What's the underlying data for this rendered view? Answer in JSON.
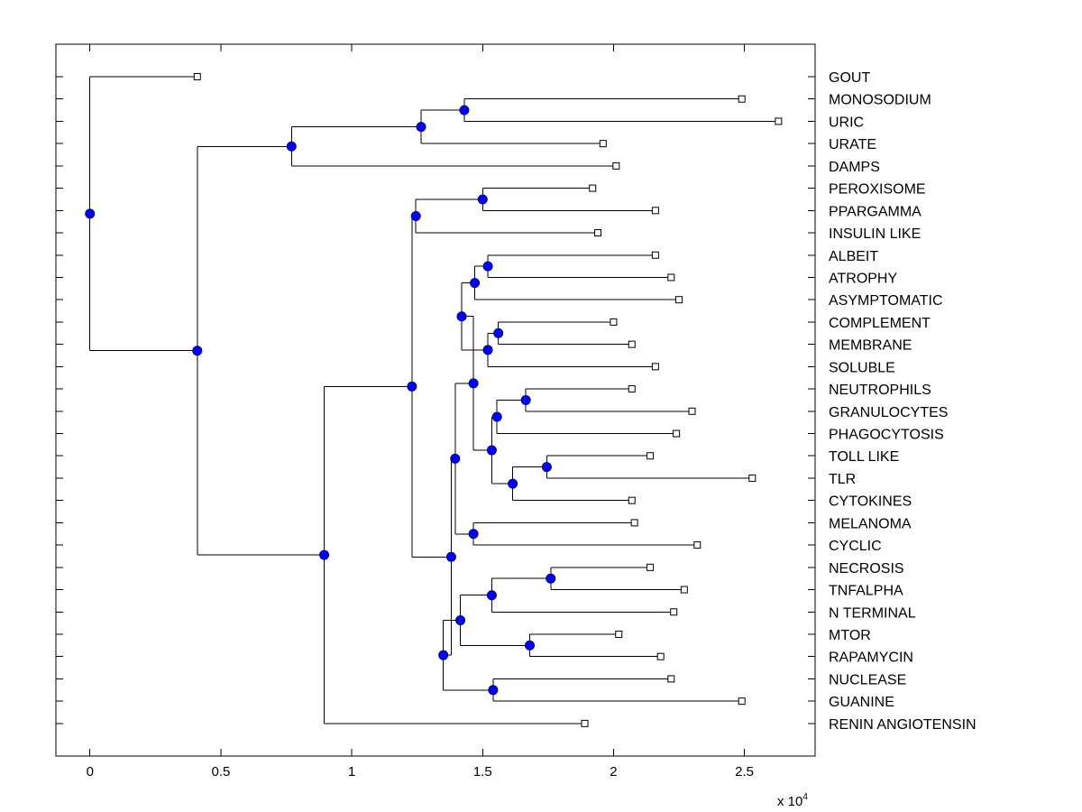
{
  "chart_data": {
    "type": "dendrogram",
    "orientation": "horizontal",
    "title": "",
    "xlabel": "",
    "ylabel": "",
    "x_multiplier_label": "x 10",
    "x_multiplier_exponent": "4",
    "xlim": [
      -0.13,
      2.77
    ],
    "xticks": [
      0,
      0.5,
      1,
      1.5,
      2,
      2.5
    ],
    "xtick_labels": [
      "0",
      "0.5",
      "1",
      "1.5",
      "2",
      "2.5"
    ],
    "grid": false,
    "leaves": [
      {
        "label": "GOUT",
        "x": 0.41
      },
      {
        "label": "MONOSODIUM",
        "x": 2.49
      },
      {
        "label": "URIC",
        "x": 2.63
      },
      {
        "label": "URATE",
        "x": 1.96
      },
      {
        "label": "DAMPS",
        "x": 2.01
      },
      {
        "label": "PEROXISOME",
        "x": 1.92
      },
      {
        "label": "PPARGAMMA",
        "x": 2.16
      },
      {
        "label": "INSULIN LIKE",
        "x": 1.94
      },
      {
        "label": "ALBEIT",
        "x": 2.16
      },
      {
        "label": "ATROPHY",
        "x": 2.22
      },
      {
        "label": "ASYMPTOMATIC",
        "x": 2.25
      },
      {
        "label": "COMPLEMENT",
        "x": 2.0
      },
      {
        "label": "MEMBRANE",
        "x": 2.07
      },
      {
        "label": "SOLUBLE",
        "x": 2.16
      },
      {
        "label": "NEUTROPHILS",
        "x": 2.07
      },
      {
        "label": "GRANULOCYTES",
        "x": 2.3
      },
      {
        "label": "PHAGOCYTOSIS",
        "x": 2.24
      },
      {
        "label": "TOLL LIKE",
        "x": 2.14
      },
      {
        "label": "TLR",
        "x": 2.53
      },
      {
        "label": "CYTOKINES",
        "x": 2.07
      },
      {
        "label": "MELANOMA",
        "x": 2.08
      },
      {
        "label": "CYCLIC",
        "x": 2.32
      },
      {
        "label": "NECROSIS",
        "x": 2.14
      },
      {
        "label": "TNFALPHA",
        "x": 2.27
      },
      {
        "label": "N TERMINAL",
        "x": 2.23
      },
      {
        "label": "MTOR",
        "x": 2.02
      },
      {
        "label": "RAPAMYCIN",
        "x": 2.18
      },
      {
        "label": "NUCLEASE",
        "x": 2.22
      },
      {
        "label": "GUANINE",
        "x": 2.49
      },
      {
        "label": "RENIN ANGIOTENSIN",
        "x": 1.89
      }
    ],
    "merges": [
      {
        "id": "n1",
        "x": 1.43,
        "children": [
          "L1",
          "L2"
        ]
      },
      {
        "id": "n2",
        "x": 1.265,
        "children": [
          "n1",
          "L3"
        ]
      },
      {
        "id": "n3",
        "x": 0.77,
        "children": [
          "n2",
          "L4"
        ]
      },
      {
        "id": "n4",
        "x": 1.5,
        "children": [
          "L5",
          "L6"
        ]
      },
      {
        "id": "n5",
        "x": 1.245,
        "children": [
          "n4",
          "L7"
        ]
      },
      {
        "id": "n6",
        "x": 1.52,
        "children": [
          "L8",
          "L9"
        ]
      },
      {
        "id": "n7",
        "x": 1.47,
        "children": [
          "n6",
          "L10"
        ]
      },
      {
        "id": "n8",
        "x": 1.56,
        "children": [
          "L11",
          "L12"
        ]
      },
      {
        "id": "n9",
        "x": 1.52,
        "children": [
          "n8",
          "L13"
        ]
      },
      {
        "id": "n10",
        "x": 1.42,
        "children": [
          "n7",
          "n9"
        ]
      },
      {
        "id": "n11",
        "x": 1.665,
        "children": [
          "L14",
          "L15"
        ]
      },
      {
        "id": "n12",
        "x": 1.555,
        "children": [
          "n11",
          "L16"
        ]
      },
      {
        "id": "n13",
        "x": 1.745,
        "children": [
          "L17",
          "L18"
        ]
      },
      {
        "id": "n14",
        "x": 1.615,
        "children": [
          "n13",
          "L19"
        ]
      },
      {
        "id": "n15",
        "x": 1.535,
        "children": [
          "n12",
          "n14"
        ]
      },
      {
        "id": "n16",
        "x": 1.465,
        "children": [
          "n10",
          "n15"
        ]
      },
      {
        "id": "n17",
        "x": 1.465,
        "children": [
          "L20",
          "L21"
        ]
      },
      {
        "id": "n18",
        "x": 1.395,
        "children": [
          "n16",
          "n17"
        ]
      },
      {
        "id": "n19",
        "x": 1.76,
        "children": [
          "L22",
          "L23"
        ]
      },
      {
        "id": "n20",
        "x": 1.535,
        "children": [
          "n19",
          "L24"
        ]
      },
      {
        "id": "n21",
        "x": 1.68,
        "children": [
          "L25",
          "L26"
        ]
      },
      {
        "id": "n22",
        "x": 1.415,
        "children": [
          "n20",
          "n21"
        ]
      },
      {
        "id": "n23",
        "x": 1.54,
        "children": [
          "L27",
          "L28"
        ]
      },
      {
        "id": "n24",
        "x": 1.35,
        "children": [
          "n22",
          "n23"
        ]
      },
      {
        "id": "n25",
        "x": 1.38,
        "children": [
          "n18",
          "n24"
        ]
      },
      {
        "id": "n26",
        "x": 1.23,
        "children": [
          "n5",
          "n25"
        ]
      },
      {
        "id": "n27",
        "x": 0.895,
        "children": [
          "n26",
          "L29"
        ]
      },
      {
        "id": "n28",
        "x": 0.41,
        "children": [
          "n3",
          "n27"
        ]
      },
      {
        "id": "n29",
        "x": 0.0,
        "children": [
          "L0",
          "n28"
        ]
      }
    ],
    "colors": {
      "node_fill": "#0000ff",
      "node_stroke": "#000080",
      "line": "#000000",
      "leaf_marker_fill": "#ffffff",
      "leaf_marker_stroke": "#000000",
      "axes": "#000000"
    }
  }
}
